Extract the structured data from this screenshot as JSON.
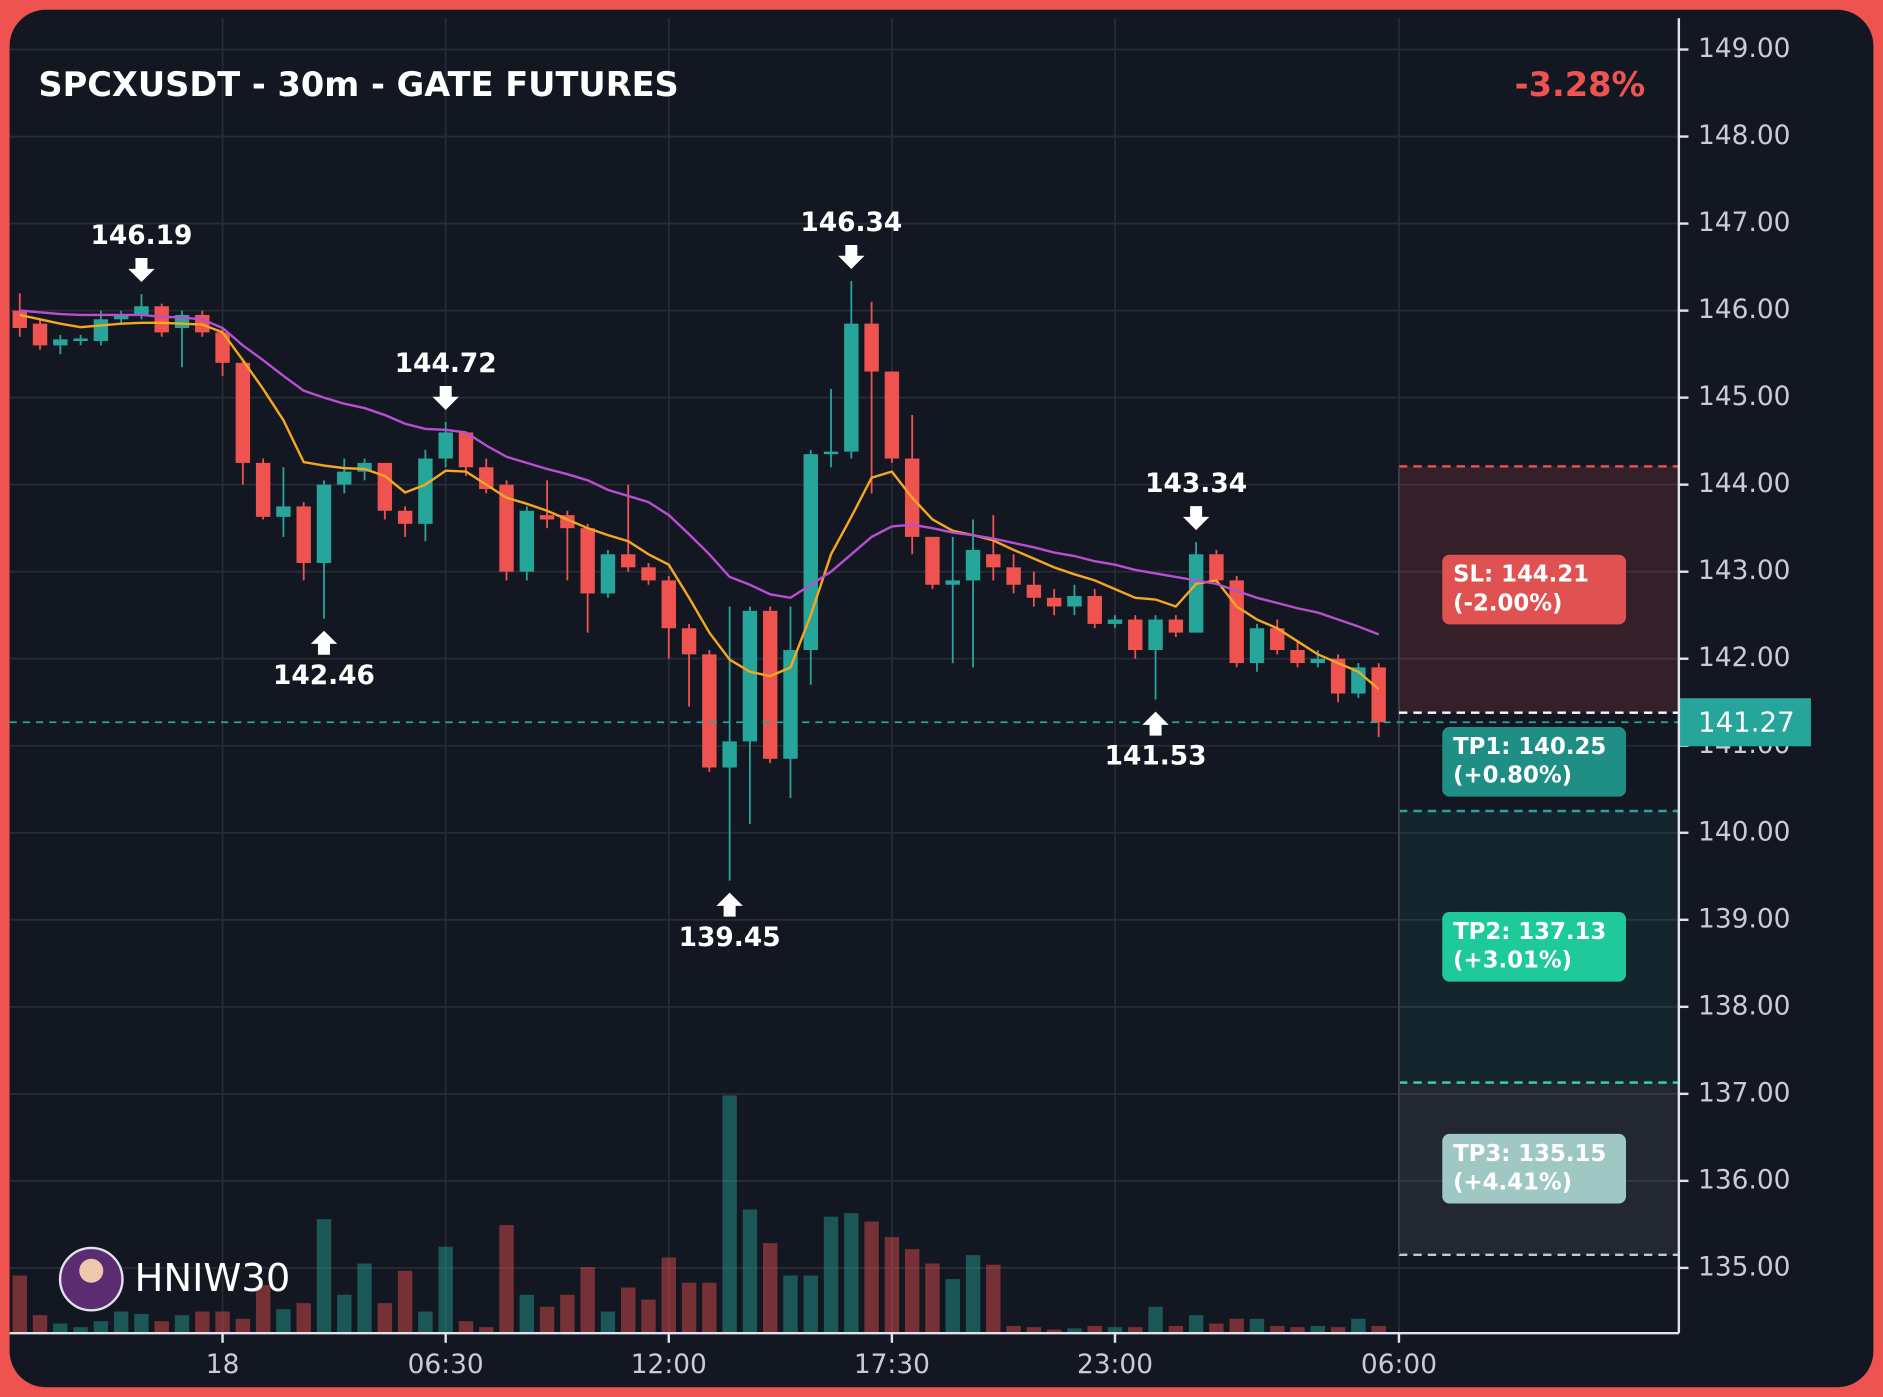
{
  "chart_data": {
    "type": "candlestick",
    "title": "SPCXUSDT - 30m - GATE FUTURES",
    "change": "-3.28%",
    "watermark": "HNIW30",
    "up_color": "#26a69a",
    "down_color": "#ef5350",
    "xlim": [
      -0.5,
      81.8
    ],
    "xticks": [
      {
        "value": 10,
        "label": "18"
      },
      {
        "value": 21,
        "label": "06:30"
      },
      {
        "value": 32,
        "label": "12:00"
      },
      {
        "value": 43,
        "label": "17:30"
      },
      {
        "value": 54,
        "label": "23:00"
      },
      {
        "value": 68,
        "label": "06:00"
      }
    ],
    "ylim": [
      134.25,
      149.36
    ],
    "yticks": [
      {
        "value": 135,
        "label": "135.00"
      },
      {
        "value": 136,
        "label": "136.00"
      },
      {
        "value": 137,
        "label": "137.00"
      },
      {
        "value": 138,
        "label": "138.00"
      },
      {
        "value": 139,
        "label": "139.00"
      },
      {
        "value": 140,
        "label": "140.00"
      },
      {
        "value": 141,
        "label": "141.00"
      },
      {
        "value": 142,
        "label": "142.00"
      },
      {
        "value": 143,
        "label": "143.00"
      },
      {
        "value": 144,
        "label": "144.00"
      },
      {
        "value": 145,
        "label": "145.00"
      },
      {
        "value": 146,
        "label": "146.00"
      },
      {
        "value": 147,
        "label": "147.00"
      },
      {
        "value": 148,
        "label": "148.00"
      },
      {
        "value": 149,
        "label": "149.00"
      }
    ],
    "grid": true,
    "open": [
      146.0,
      145.85,
      145.6,
      145.65,
      145.65,
      145.9,
      145.95,
      146.05,
      145.8,
      145.95,
      145.75,
      145.4,
      144.25,
      143.63,
      143.75,
      143.1,
      144.0,
      144.15,
      144.25,
      143.7,
      143.55,
      144.3,
      144.6,
      144.2,
      144.0,
      143.0,
      143.65,
      143.65,
      143.5,
      142.75,
      143.2,
      143.05,
      142.9,
      142.35,
      142.05,
      140.75,
      141.05,
      142.55,
      140.85,
      142.1,
      144.35,
      144.38,
      145.85,
      145.3,
      144.3,
      143.4,
      142.85,
      142.9,
      143.2,
      143.05,
      142.85,
      142.7,
      142.6,
      142.72,
      142.4,
      142.45,
      142.1,
      142.45,
      142.3,
      143.2,
      142.9,
      141.95,
      142.35,
      142.1,
      141.95,
      142.0,
      141.6,
      141.9
    ],
    "high": [
      146.2,
      145.9,
      145.72,
      145.72,
      146.0,
      146.0,
      146.19,
      146.08,
      146.0,
      146.0,
      145.8,
      145.45,
      144.3,
      144.2,
      143.8,
      144.05,
      144.3,
      144.3,
      144.25,
      143.75,
      144.4,
      144.72,
      144.6,
      144.3,
      144.05,
      143.75,
      144.05,
      143.7,
      143.55,
      143.25,
      144.0,
      143.1,
      142.95,
      142.4,
      142.1,
      142.6,
      142.6,
      142.6,
      142.6,
      144.4,
      145.1,
      146.34,
      146.1,
      145.3,
      144.8,
      143.4,
      143.4,
      143.6,
      143.65,
      143.2,
      143.0,
      142.8,
      142.85,
      142.8,
      142.5,
      142.5,
      142.5,
      142.5,
      143.34,
      143.25,
      142.95,
      142.4,
      142.45,
      142.2,
      142.1,
      142.05,
      141.95,
      141.95
    ],
    "low": [
      145.7,
      145.55,
      145.5,
      145.6,
      145.6,
      145.85,
      145.9,
      145.7,
      145.35,
      145.7,
      145.25,
      144.0,
      143.6,
      143.4,
      142.9,
      142.46,
      143.9,
      144.05,
      143.6,
      143.4,
      143.35,
      144.2,
      144.1,
      143.9,
      142.9,
      142.9,
      143.5,
      142.9,
      142.3,
      142.7,
      143.0,
      142.85,
      142.0,
      141.45,
      140.7,
      139.45,
      140.1,
      140.8,
      140.4,
      141.7,
      144.2,
      144.3,
      143.9,
      144.25,
      143.2,
      142.8,
      141.95,
      141.9,
      142.9,
      142.75,
      142.6,
      142.5,
      142.5,
      142.35,
      142.35,
      142.0,
      141.53,
      142.25,
      142.3,
      142.85,
      141.9,
      141.85,
      142.05,
      141.9,
      141.9,
      141.5,
      141.55,
      141.1
    ],
    "close": [
      145.8,
      145.6,
      145.67,
      145.68,
      145.9,
      145.95,
      146.05,
      145.75,
      145.95,
      145.75,
      145.4,
      144.25,
      143.63,
      143.75,
      143.1,
      144.0,
      144.15,
      144.25,
      143.7,
      143.55,
      144.3,
      144.6,
      144.2,
      143.95,
      143.0,
      143.7,
      143.6,
      143.5,
      142.75,
      143.2,
      143.05,
      142.9,
      142.35,
      142.05,
      140.75,
      141.05,
      142.55,
      140.85,
      142.1,
      144.35,
      144.38,
      145.85,
      145.3,
      144.3,
      143.4,
      142.85,
      142.9,
      143.25,
      143.05,
      142.85,
      142.7,
      142.6,
      142.72,
      142.4,
      142.45,
      142.1,
      142.45,
      142.3,
      143.2,
      142.9,
      141.95,
      142.35,
      142.1,
      141.95,
      142.0,
      141.6,
      141.9,
      141.27
    ],
    "volume": [
      48,
      15,
      8,
      5,
      10,
      18,
      16,
      10,
      15,
      18,
      18,
      12,
      40,
      20,
      25,
      95,
      32,
      58,
      25,
      52,
      18,
      72,
      10,
      5,
      90,
      32,
      22,
      32,
      55,
      18,
      38,
      28,
      63,
      42,
      42,
      198,
      103,
      75,
      48,
      48,
      97,
      100,
      93,
      80,
      70,
      58,
      45,
      65,
      57,
      6,
      5,
      3,
      4,
      6,
      5,
      5,
      22,
      6,
      15,
      8,
      12,
      12,
      6,
      5,
      6,
      5,
      12,
      6
    ],
    "lines": [
      {
        "color": "#f5a623",
        "values": [
          145.95,
          145.9,
          145.85,
          145.81,
          145.83,
          145.85,
          145.86,
          145.86,
          145.85,
          145.84,
          145.75,
          145.43,
          145.1,
          144.74,
          144.26,
          144.22,
          144.19,
          144.18,
          144.1,
          143.91,
          144.0,
          144.16,
          144.15,
          144.0,
          143.85,
          143.78,
          143.7,
          143.6,
          143.5,
          143.42,
          143.35,
          143.2,
          143.08,
          142.7,
          142.3,
          141.99,
          141.85,
          141.8,
          141.9,
          142.5,
          143.2,
          143.63,
          144.08,
          144.15,
          143.85,
          143.6,
          143.47,
          143.42,
          143.36,
          143.25,
          143.15,
          143.05,
          142.97,
          142.9,
          142.8,
          142.7,
          142.68,
          142.6,
          142.86,
          142.9,
          142.6,
          142.45,
          142.35,
          142.2,
          142.05,
          141.95,
          141.85,
          141.65
        ]
      },
      {
        "color": "#b84fd0",
        "values": [
          146.0,
          145.98,
          145.96,
          145.95,
          145.95,
          145.95,
          145.95,
          145.93,
          145.92,
          145.9,
          145.8,
          145.6,
          145.43,
          145.25,
          145.08,
          145.0,
          144.93,
          144.88,
          144.8,
          144.7,
          144.64,
          144.63,
          144.6,
          144.45,
          144.32,
          144.25,
          144.18,
          144.12,
          144.05,
          143.94,
          143.87,
          143.8,
          143.65,
          143.43,
          143.2,
          142.94,
          142.85,
          142.74,
          142.7,
          142.85,
          143.0,
          143.2,
          143.4,
          143.52,
          143.54,
          143.5,
          143.45,
          143.42,
          143.38,
          143.33,
          143.28,
          143.22,
          143.18,
          143.12,
          143.08,
          143.02,
          142.98,
          142.94,
          142.9,
          142.86,
          142.78,
          142.7,
          142.64,
          142.58,
          142.53,
          142.45,
          142.37,
          142.28
        ]
      }
    ],
    "extremes": [
      {
        "x": 6,
        "value": 146.19,
        "kind": "high"
      },
      {
        "x": 15,
        "value": 142.46,
        "kind": "low"
      },
      {
        "x": 21,
        "value": 144.72,
        "kind": "high"
      },
      {
        "x": 35,
        "value": 139.45,
        "kind": "low"
      },
      {
        "x": 41,
        "value": 146.34,
        "kind": "high"
      },
      {
        "x": 56,
        "value": 141.53,
        "kind": "low"
      },
      {
        "x": 58,
        "value": 143.34,
        "kind": "high"
      }
    ],
    "last_price": {
      "value": 141.27,
      "color": "#26a69a"
    },
    "entry": {
      "value": 141.38,
      "color": "#ffffff"
    },
    "levels": [
      {
        "label": "SL: 144.21",
        "change": "(-2.00%)",
        "value": 144.21,
        "color": "#e05252",
        "line_color": "#e05252",
        "zone": "rgba(239,83,80,0.16)"
      },
      {
        "label": "TP1: 140.25",
        "change": "(+0.80%)",
        "value": 140.25,
        "color": "#1f8f85",
        "line_color": "#26a69a",
        "zone": "rgba(38,166,154,0.10)"
      },
      {
        "label": "TP2: 137.13",
        "change": "(+3.01%)",
        "value": 137.13,
        "color": "#1ec99a",
        "line_color": "#2bd9a6",
        "zone": "rgba(38,166,154,0.10)"
      },
      {
        "label": "TP3: 135.15",
        "change": "(+4.41%)",
        "value": 135.15,
        "color": "#9fc8c4",
        "line_color": "#c0c8d0",
        "zone": "rgba(255,255,255,0.07)"
      }
    ]
  }
}
